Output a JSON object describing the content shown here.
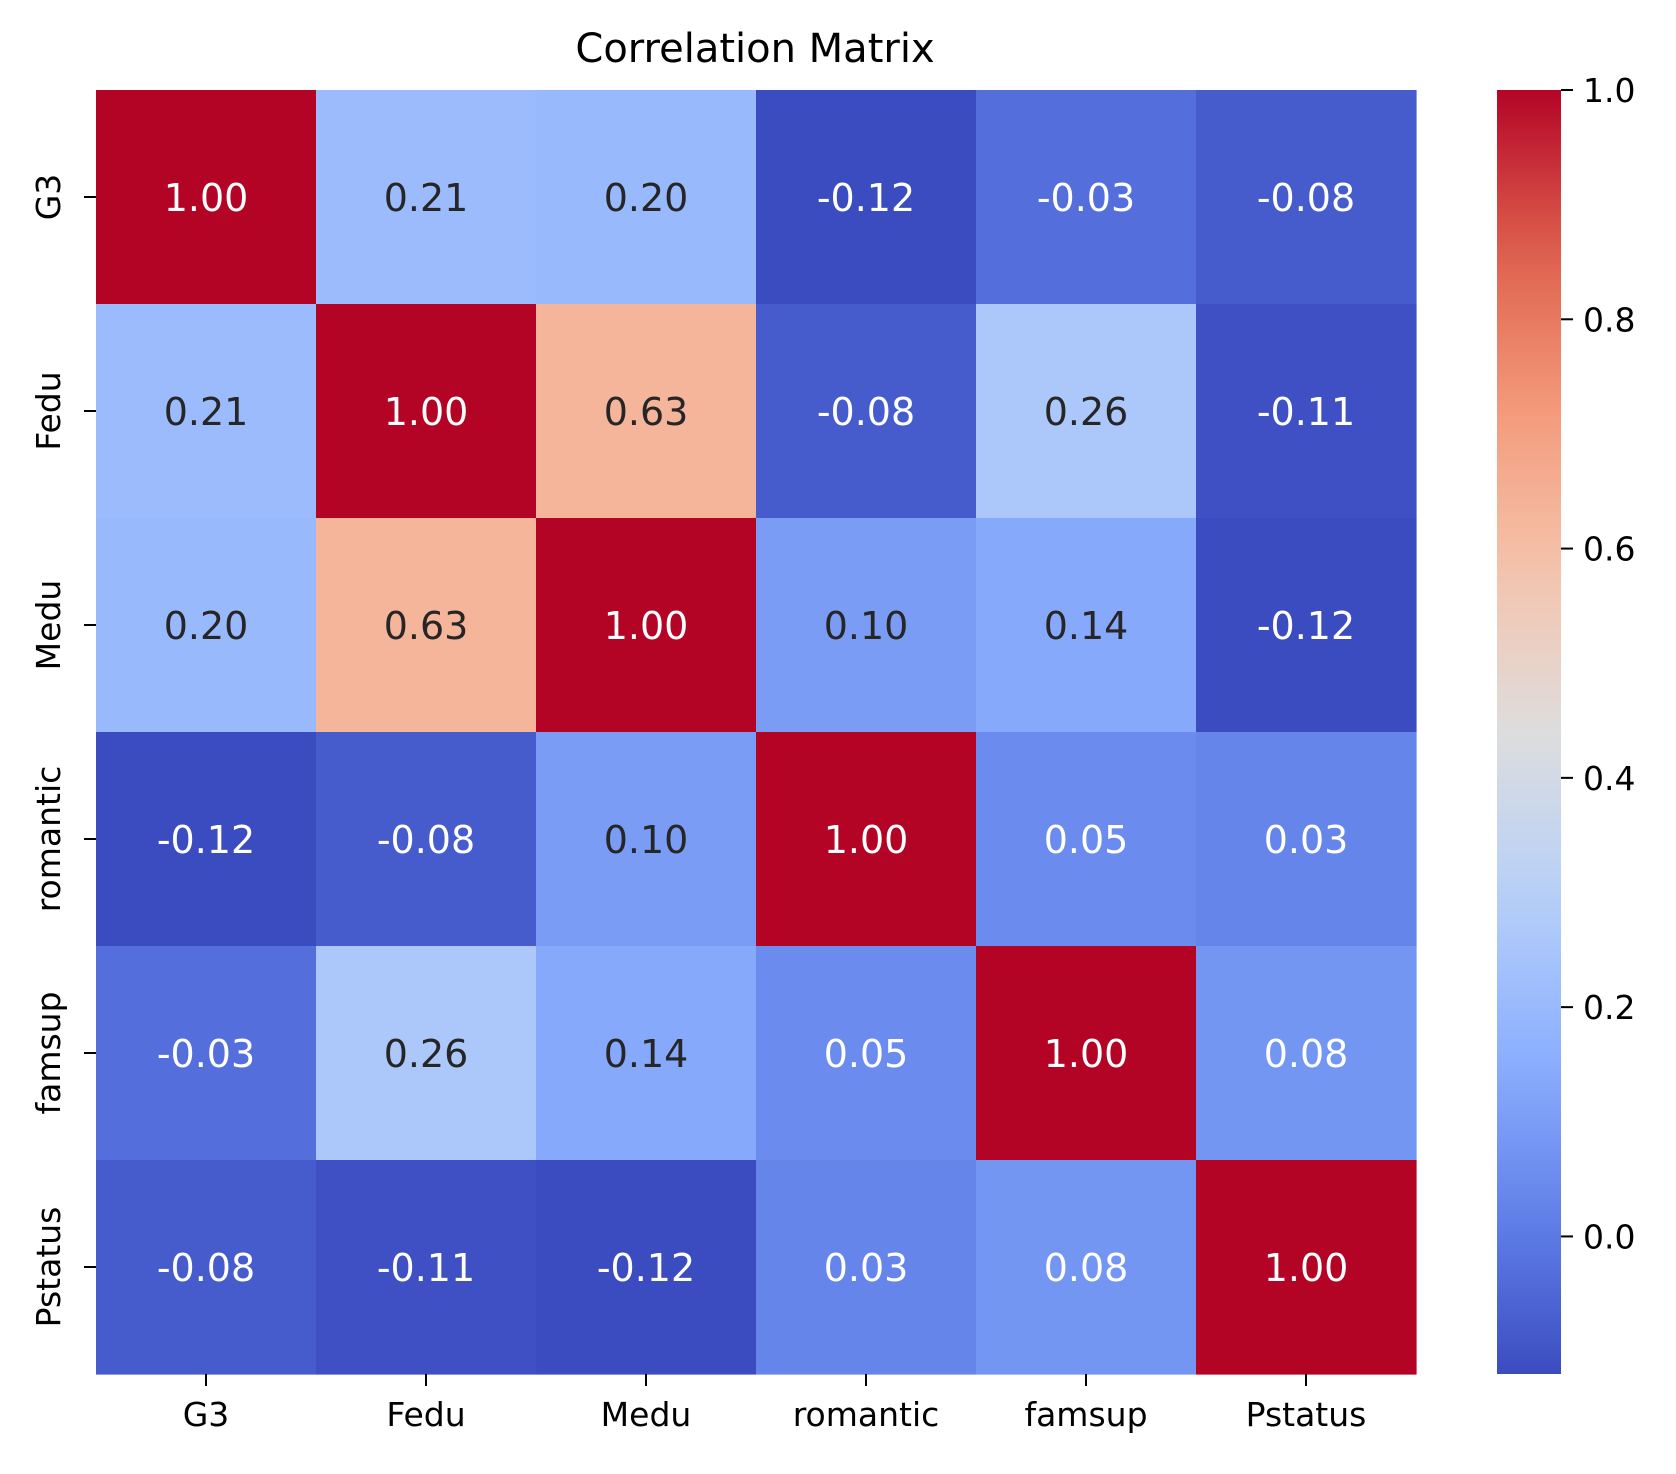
{
  "chart_data": {
    "type": "heatmap",
    "title": "Correlation Matrix",
    "xlabel": "",
    "ylabel": "",
    "rows": [
      "G3",
      "Fedu",
      "Medu",
      "romantic",
      "famsup",
      "Pstatus"
    ],
    "columns": [
      "G3",
      "Fedu",
      "Medu",
      "romantic",
      "famsup",
      "Pstatus"
    ],
    "values": [
      [
        1.0,
        0.21,
        0.2,
        -0.12,
        -0.03,
        -0.08
      ],
      [
        0.21,
        1.0,
        0.63,
        -0.08,
        0.26,
        -0.11
      ],
      [
        0.2,
        0.63,
        1.0,
        0.1,
        0.14,
        -0.12
      ],
      [
        -0.12,
        -0.08,
        0.1,
        1.0,
        0.05,
        0.03
      ],
      [
        -0.03,
        0.26,
        0.14,
        0.05,
        1.0,
        0.08
      ],
      [
        -0.08,
        -0.11,
        -0.12,
        0.03,
        0.08,
        1.0
      ]
    ],
    "cell_labels": [
      [
        "1.00",
        "0.21",
        "0.20",
        "-0.12",
        "-0.03",
        "-0.08"
      ],
      [
        "0.21",
        "1.00",
        "0.63",
        "-0.08",
        "0.26",
        "-0.11"
      ],
      [
        "0.20",
        "0.63",
        "1.00",
        "0.10",
        "0.14",
        "-0.12"
      ],
      [
        "-0.12",
        "-0.08",
        "0.10",
        "1.00",
        "0.05",
        "0.03"
      ],
      [
        "-0.03",
        "0.26",
        "0.14",
        "0.05",
        "1.00",
        "0.08"
      ],
      [
        "-0.08",
        "-0.11",
        "-0.12",
        "0.03",
        "0.08",
        "1.00"
      ]
    ],
    "colormap": "coolwarm",
    "color_range": [
      -0.12,
      1.0
    ],
    "colorbar_ticks": [
      0.0,
      0.2,
      0.4,
      0.6,
      0.8,
      1.0
    ],
    "colorbar_tick_labels": [
      "0.0",
      "0.2",
      "0.4",
      "0.6",
      "0.8",
      "1.0"
    ],
    "colorbar_placement": "right",
    "grid": false
  }
}
